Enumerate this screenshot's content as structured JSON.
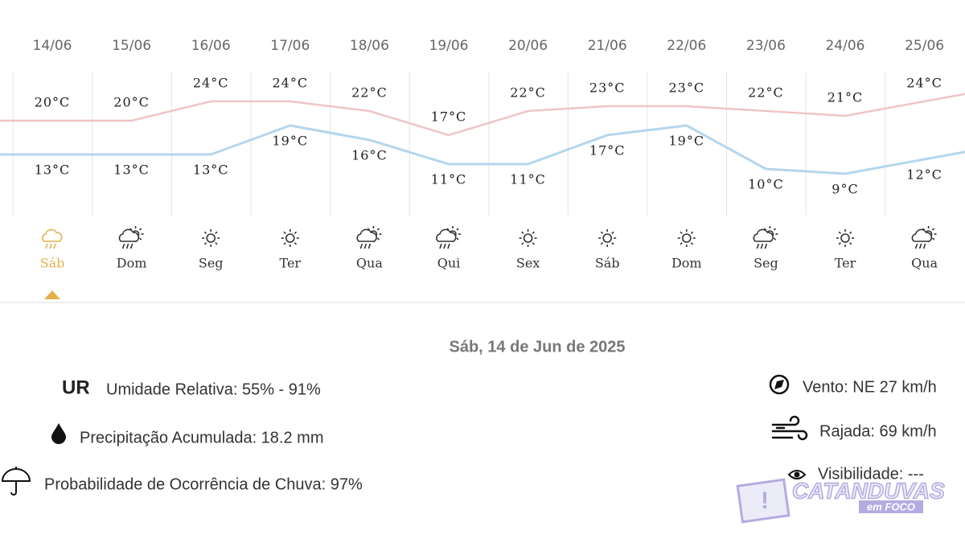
{
  "days": [
    {
      "date": "14/06",
      "weekday": "Sáb",
      "max": 20,
      "max_label": "20°C",
      "min": 13,
      "min_label": "13°C"
    },
    {
      "date": "15/06",
      "weekday": "Dom",
      "max": 20,
      "max_label": "20°C",
      "min": 13,
      "min_label": "13°C"
    },
    {
      "date": "16/06",
      "weekday": "Seg",
      "max": 24,
      "max_label": "24°C",
      "min": 13,
      "min_label": "13°C"
    },
    {
      "date": "17/06",
      "weekday": "Ter",
      "max": 24,
      "max_label": "24°C",
      "min": 19,
      "min_label": "19°C"
    },
    {
      "date": "18/06",
      "weekday": "Qua",
      "max": 22,
      "max_label": "22°C",
      "min": 16,
      "min_label": "16°C"
    },
    {
      "date": "19/06",
      "weekday": "Qui",
      "max": 17,
      "max_label": "17°C",
      "min": 11,
      "min_label": "11°C"
    },
    {
      "date": "20/06",
      "weekday": "Sex",
      "max": 22,
      "max_label": "22°C",
      "min": 11,
      "min_label": "11°C"
    },
    {
      "date": "21/06",
      "weekday": "Sáb",
      "max": 23,
      "max_label": "23°C",
      "min": 17,
      "min_label": "17°C"
    },
    {
      "date": "22/06",
      "weekday": "Dom",
      "max": 23,
      "max_label": "23°C",
      "min": 19,
      "min_label": "19°C"
    },
    {
      "date": "23/06",
      "weekday": "Seg",
      "max": 22,
      "max_label": "22°C",
      "min": 10,
      "min_label": "10°C"
    },
    {
      "date": "24/06",
      "weekday": "Ter",
      "max": 21,
      "max_label": "21°C",
      "min": 9,
      "min_label": "9°C"
    },
    {
      "date": "25/06",
      "weekday": "Qua",
      "max": 24,
      "max_label": "24°C",
      "min": 12,
      "min_label": "12°C"
    }
  ],
  "selected_date": "Sáb, 14 de Jun de 2025",
  "details": {
    "humidity_abbr": "UR",
    "humidity": "Umidade Relativa: 55% - 91%",
    "precipitation": "Precipitação Acumulada: 18.2 mm",
    "rain_probability": "Probabilidade de Ocorrência de Chuva: 97%",
    "wind": "Vento: NE 27 km/h",
    "gust": "Rajada: 69 km/h",
    "visibility": "Visibilidade: ---"
  },
  "watermark": {
    "title": "CATANDUVAS",
    "subtitle": "em FOCO"
  }
}
